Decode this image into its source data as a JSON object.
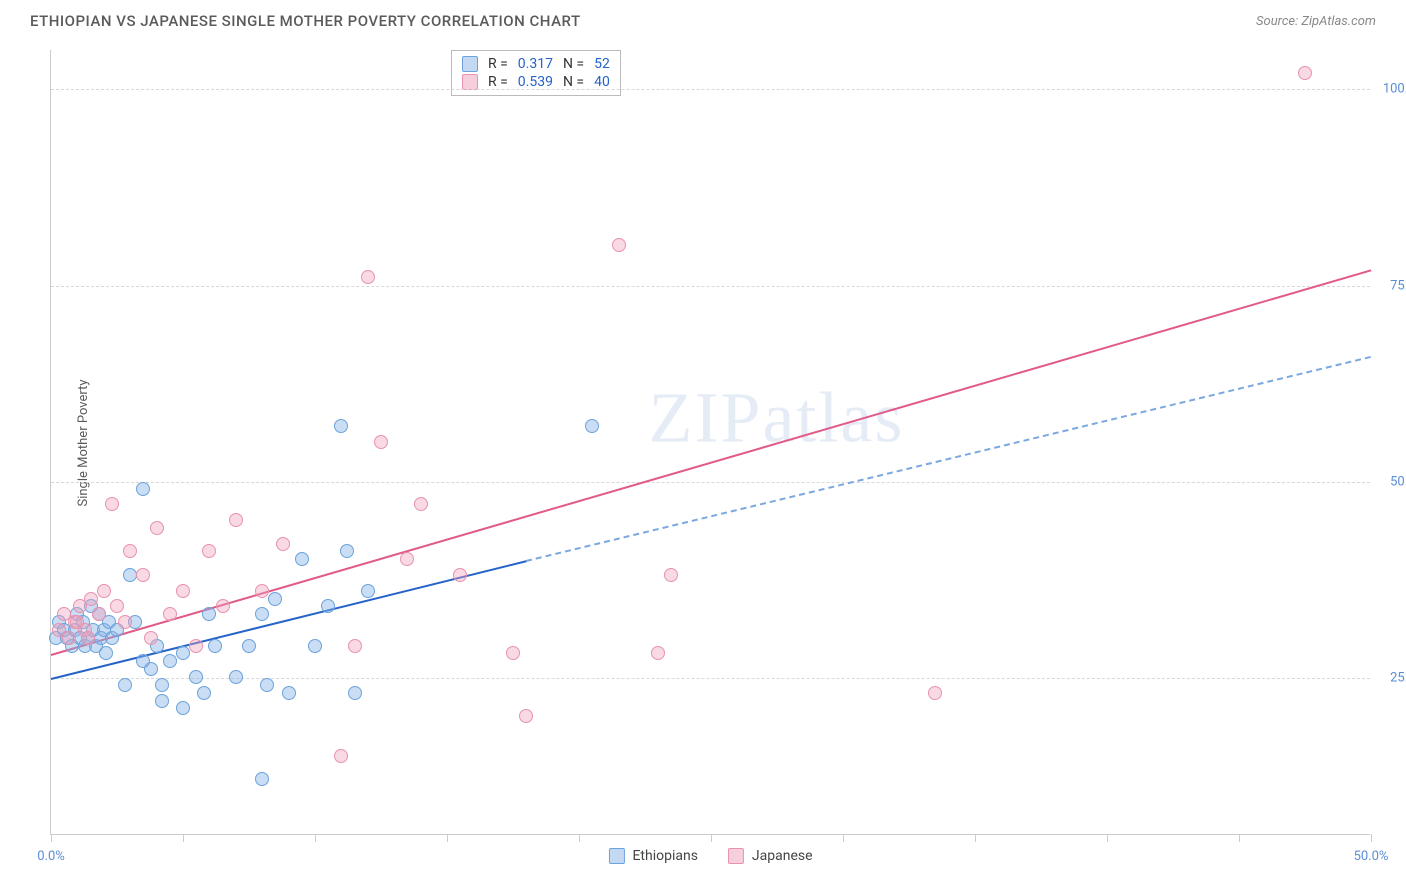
{
  "title": "ETHIOPIAN VS JAPANESE SINGLE MOTHER POVERTY CORRELATION CHART",
  "source_label": "Source: ZipAtlas.com",
  "y_axis_label": "Single Mother Poverty",
  "watermark_text": "ZIPatlas",
  "chart": {
    "type": "scatter",
    "xlim": [
      0,
      50
    ],
    "ylim": [
      5,
      105
    ],
    "x_tick_positions": [
      0,
      5,
      10,
      15,
      20,
      25,
      30,
      35,
      40,
      45,
      50
    ],
    "x_tick_labels": {
      "0": "0.0%",
      "50": "50.0%"
    },
    "y_grid_positions": [
      25,
      50,
      75,
      100
    ],
    "y_tick_labels": {
      "25": "25.0%",
      "50": "50.0%",
      "75": "75.0%",
      "100": "100.0%"
    },
    "background_color": "#ffffff",
    "grid_color": "#d8d8d8",
    "grid_dashed": true,
    "axis_color": "#cccccc",
    "marker_size": 14,
    "series": [
      {
        "name": "Ethiopians",
        "fill_color": "rgba(135,180,230,0.45)",
        "border_color": "#6ba3db",
        "r_value": "0.317",
        "n_value": "52",
        "trend": {
          "solid_color": "#2563c9",
          "solid_width": 2.5,
          "dashed_color": "#7ba8e0",
          "dashed_width": 2,
          "x1": 0,
          "y1": 25,
          "x_split": 18,
          "y_split": 40,
          "x2": 50,
          "y2": 66
        },
        "points": [
          [
            0.2,
            30
          ],
          [
            0.3,
            32
          ],
          [
            0.5,
            31
          ],
          [
            0.6,
            30
          ],
          [
            0.8,
            29
          ],
          [
            0.9,
            31
          ],
          [
            1.0,
            33
          ],
          [
            1.1,
            30
          ],
          [
            1.2,
            32
          ],
          [
            1.3,
            29
          ],
          [
            1.4,
            30
          ],
          [
            1.5,
            34
          ],
          [
            1.6,
            31
          ],
          [
            1.7,
            29
          ],
          [
            1.8,
            33
          ],
          [
            1.9,
            30
          ],
          [
            2.0,
            31
          ],
          [
            2.1,
            28
          ],
          [
            2.2,
            32
          ],
          [
            2.3,
            30
          ],
          [
            2.5,
            31
          ],
          [
            3.0,
            38
          ],
          [
            3.2,
            32
          ],
          [
            3.5,
            49
          ],
          [
            3.8,
            26
          ],
          [
            4.0,
            29
          ],
          [
            4.2,
            24
          ],
          [
            4.5,
            27
          ],
          [
            5.0,
            28
          ],
          [
            5.5,
            25
          ],
          [
            5.8,
            23
          ],
          [
            6.0,
            33
          ],
          [
            6.2,
            29
          ],
          [
            7.0,
            25
          ],
          [
            7.5,
            29
          ],
          [
            8.0,
            33
          ],
          [
            8.2,
            24
          ],
          [
            8.5,
            35
          ],
          [
            9.0,
            23
          ],
          [
            9.5,
            40
          ],
          [
            10.0,
            29
          ],
          [
            10.5,
            34
          ],
          [
            11.0,
            57
          ],
          [
            11.2,
            41
          ],
          [
            11.5,
            23
          ],
          [
            12.0,
            36
          ],
          [
            8.0,
            12
          ],
          [
            20.5,
            57
          ],
          [
            5.0,
            21
          ],
          [
            4.2,
            22
          ],
          [
            3.5,
            27
          ],
          [
            2.8,
            24
          ]
        ]
      },
      {
        "name": "Japanese",
        "fill_color": "rgba(240,160,185,0.4)",
        "border_color": "#e892b0",
        "r_value": "0.539",
        "n_value": "40",
        "trend": {
          "solid_color": "#e15a8a",
          "solid_width": 2.5,
          "x1": 0,
          "y1": 28,
          "x2": 50,
          "y2": 77
        },
        "points": [
          [
            0.3,
            31
          ],
          [
            0.5,
            33
          ],
          [
            0.7,
            30
          ],
          [
            0.9,
            32
          ],
          [
            1.1,
            34
          ],
          [
            1.3,
            31
          ],
          [
            1.5,
            35
          ],
          [
            1.8,
            33
          ],
          [
            2.0,
            36
          ],
          [
            2.3,
            47
          ],
          [
            2.5,
            34
          ],
          [
            3.0,
            41
          ],
          [
            3.5,
            38
          ],
          [
            4.0,
            44
          ],
          [
            4.5,
            33
          ],
          [
            5.0,
            36
          ],
          [
            5.5,
            29
          ],
          [
            6.0,
            41
          ],
          [
            6.5,
            34
          ],
          [
            7.0,
            45
          ],
          [
            8.0,
            36
          ],
          [
            8.8,
            42
          ],
          [
            11.5,
            29
          ],
          [
            12.0,
            76
          ],
          [
            12.5,
            55
          ],
          [
            13.5,
            40
          ],
          [
            14.0,
            47
          ],
          [
            15.5,
            38
          ],
          [
            17.5,
            28
          ],
          [
            18.0,
            20
          ],
          [
            21.5,
            80
          ],
          [
            23.0,
            28
          ],
          [
            23.5,
            38
          ],
          [
            33.5,
            23
          ],
          [
            11.0,
            15
          ],
          [
            47.5,
            102
          ],
          [
            1.0,
            32
          ],
          [
            1.4,
            30
          ],
          [
            2.8,
            32
          ],
          [
            3.8,
            30
          ]
        ]
      }
    ]
  },
  "stats_legend": {
    "r_label": "R =",
    "n_label": "N ="
  },
  "bottom_legend": {
    "items": [
      "Ethiopians",
      "Japanese"
    ]
  },
  "colors": {
    "title_text": "#5a5a5a",
    "source_text": "#888888",
    "tick_label_text": "#5b8dd6",
    "stat_value_text": "#2563c9"
  },
  "typography": {
    "title_fontsize": 15,
    "axis_label_fontsize": 13,
    "tick_fontsize": 13,
    "legend_fontsize": 14,
    "watermark_fontsize": 72
  }
}
